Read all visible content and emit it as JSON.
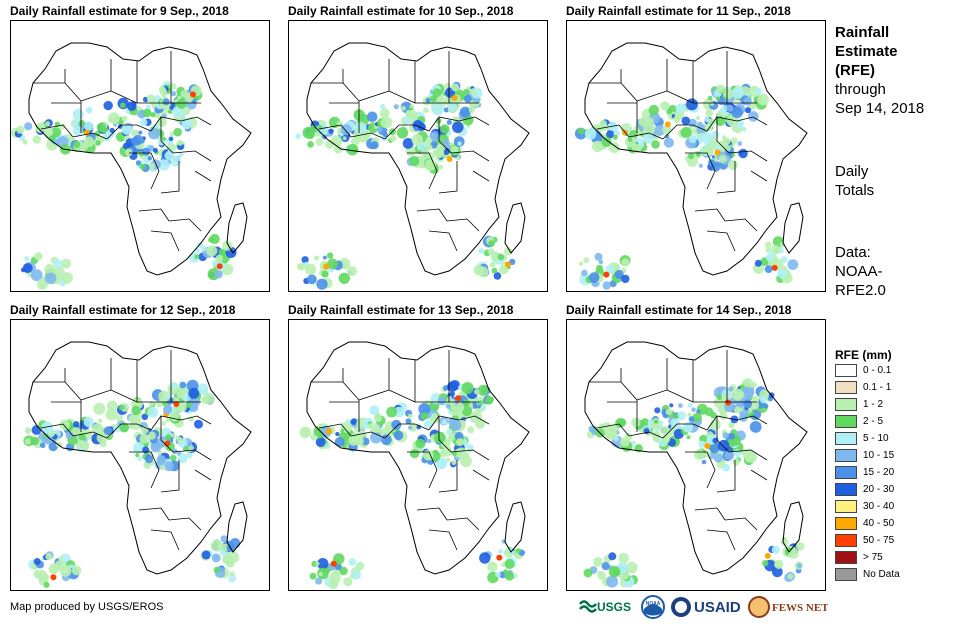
{
  "panels": [
    {
      "title": "Daily Rainfall estimate for 9 Sep., 2018"
    },
    {
      "title": "Daily Rainfall estimate for 10 Sep., 2018"
    },
    {
      "title": "Daily Rainfall estimate for 11 Sep., 2018"
    },
    {
      "title": "Daily Rainfall estimate for 12 Sep., 2018"
    },
    {
      "title": "Daily Rainfall estimate for 13 Sep., 2018"
    },
    {
      "title": "Daily Rainfall estimate for 14 Sep., 2018"
    }
  ],
  "side": {
    "heading_line1": "Rainfall",
    "heading_line2": "Estimate",
    "heading_line3": "(RFE)",
    "through_line1": "through",
    "through_line2": "Sep 14, 2018",
    "totals_line1": "Daily",
    "totals_line2": "Totals",
    "data_line1": "Data:",
    "data_line2": "NOAA-",
    "data_line3": "RFE2.0"
  },
  "legend": {
    "title": "RFE (mm)",
    "items": [
      {
        "label": "0 - 0.1",
        "color": "#ffffff"
      },
      {
        "label": "0.1 - 1",
        "color": "#f2dfc0"
      },
      {
        "label": "1 - 2",
        "color": "#b8f0b0"
      },
      {
        "label": "2 - 5",
        "color": "#60d860"
      },
      {
        "label": "5 - 10",
        "color": "#b0f0f4"
      },
      {
        "label": "10 - 15",
        "color": "#7fb8f0"
      },
      {
        "label": "15 - 20",
        "color": "#4a90e8"
      },
      {
        "label": "20 - 30",
        "color": "#1e5ee0"
      },
      {
        "label": "30 - 40",
        "color": "#fff080"
      },
      {
        "label": "40 - 50",
        "color": "#ffa800"
      },
      {
        "label": "50 - 75",
        "color": "#ff4000"
      },
      {
        "label": "> 75",
        "color": "#a01010"
      },
      {
        "label": "No Data",
        "color": "#999999"
      }
    ]
  },
  "footer": {
    "credit": "Map produced by USGS/EROS",
    "logos": [
      {
        "name": "usgs-logo",
        "text": "USGS",
        "color": "#00704a"
      },
      {
        "name": "noaa-logo",
        "text": "NOAA",
        "color": "#1d5aa8"
      },
      {
        "name": "usaid-logo",
        "text": "USAID",
        "color": "#c0272d"
      },
      {
        "name": "fewsnet-logo",
        "text": "FEWS NET",
        "color": "#8b3a1a"
      }
    ]
  }
}
